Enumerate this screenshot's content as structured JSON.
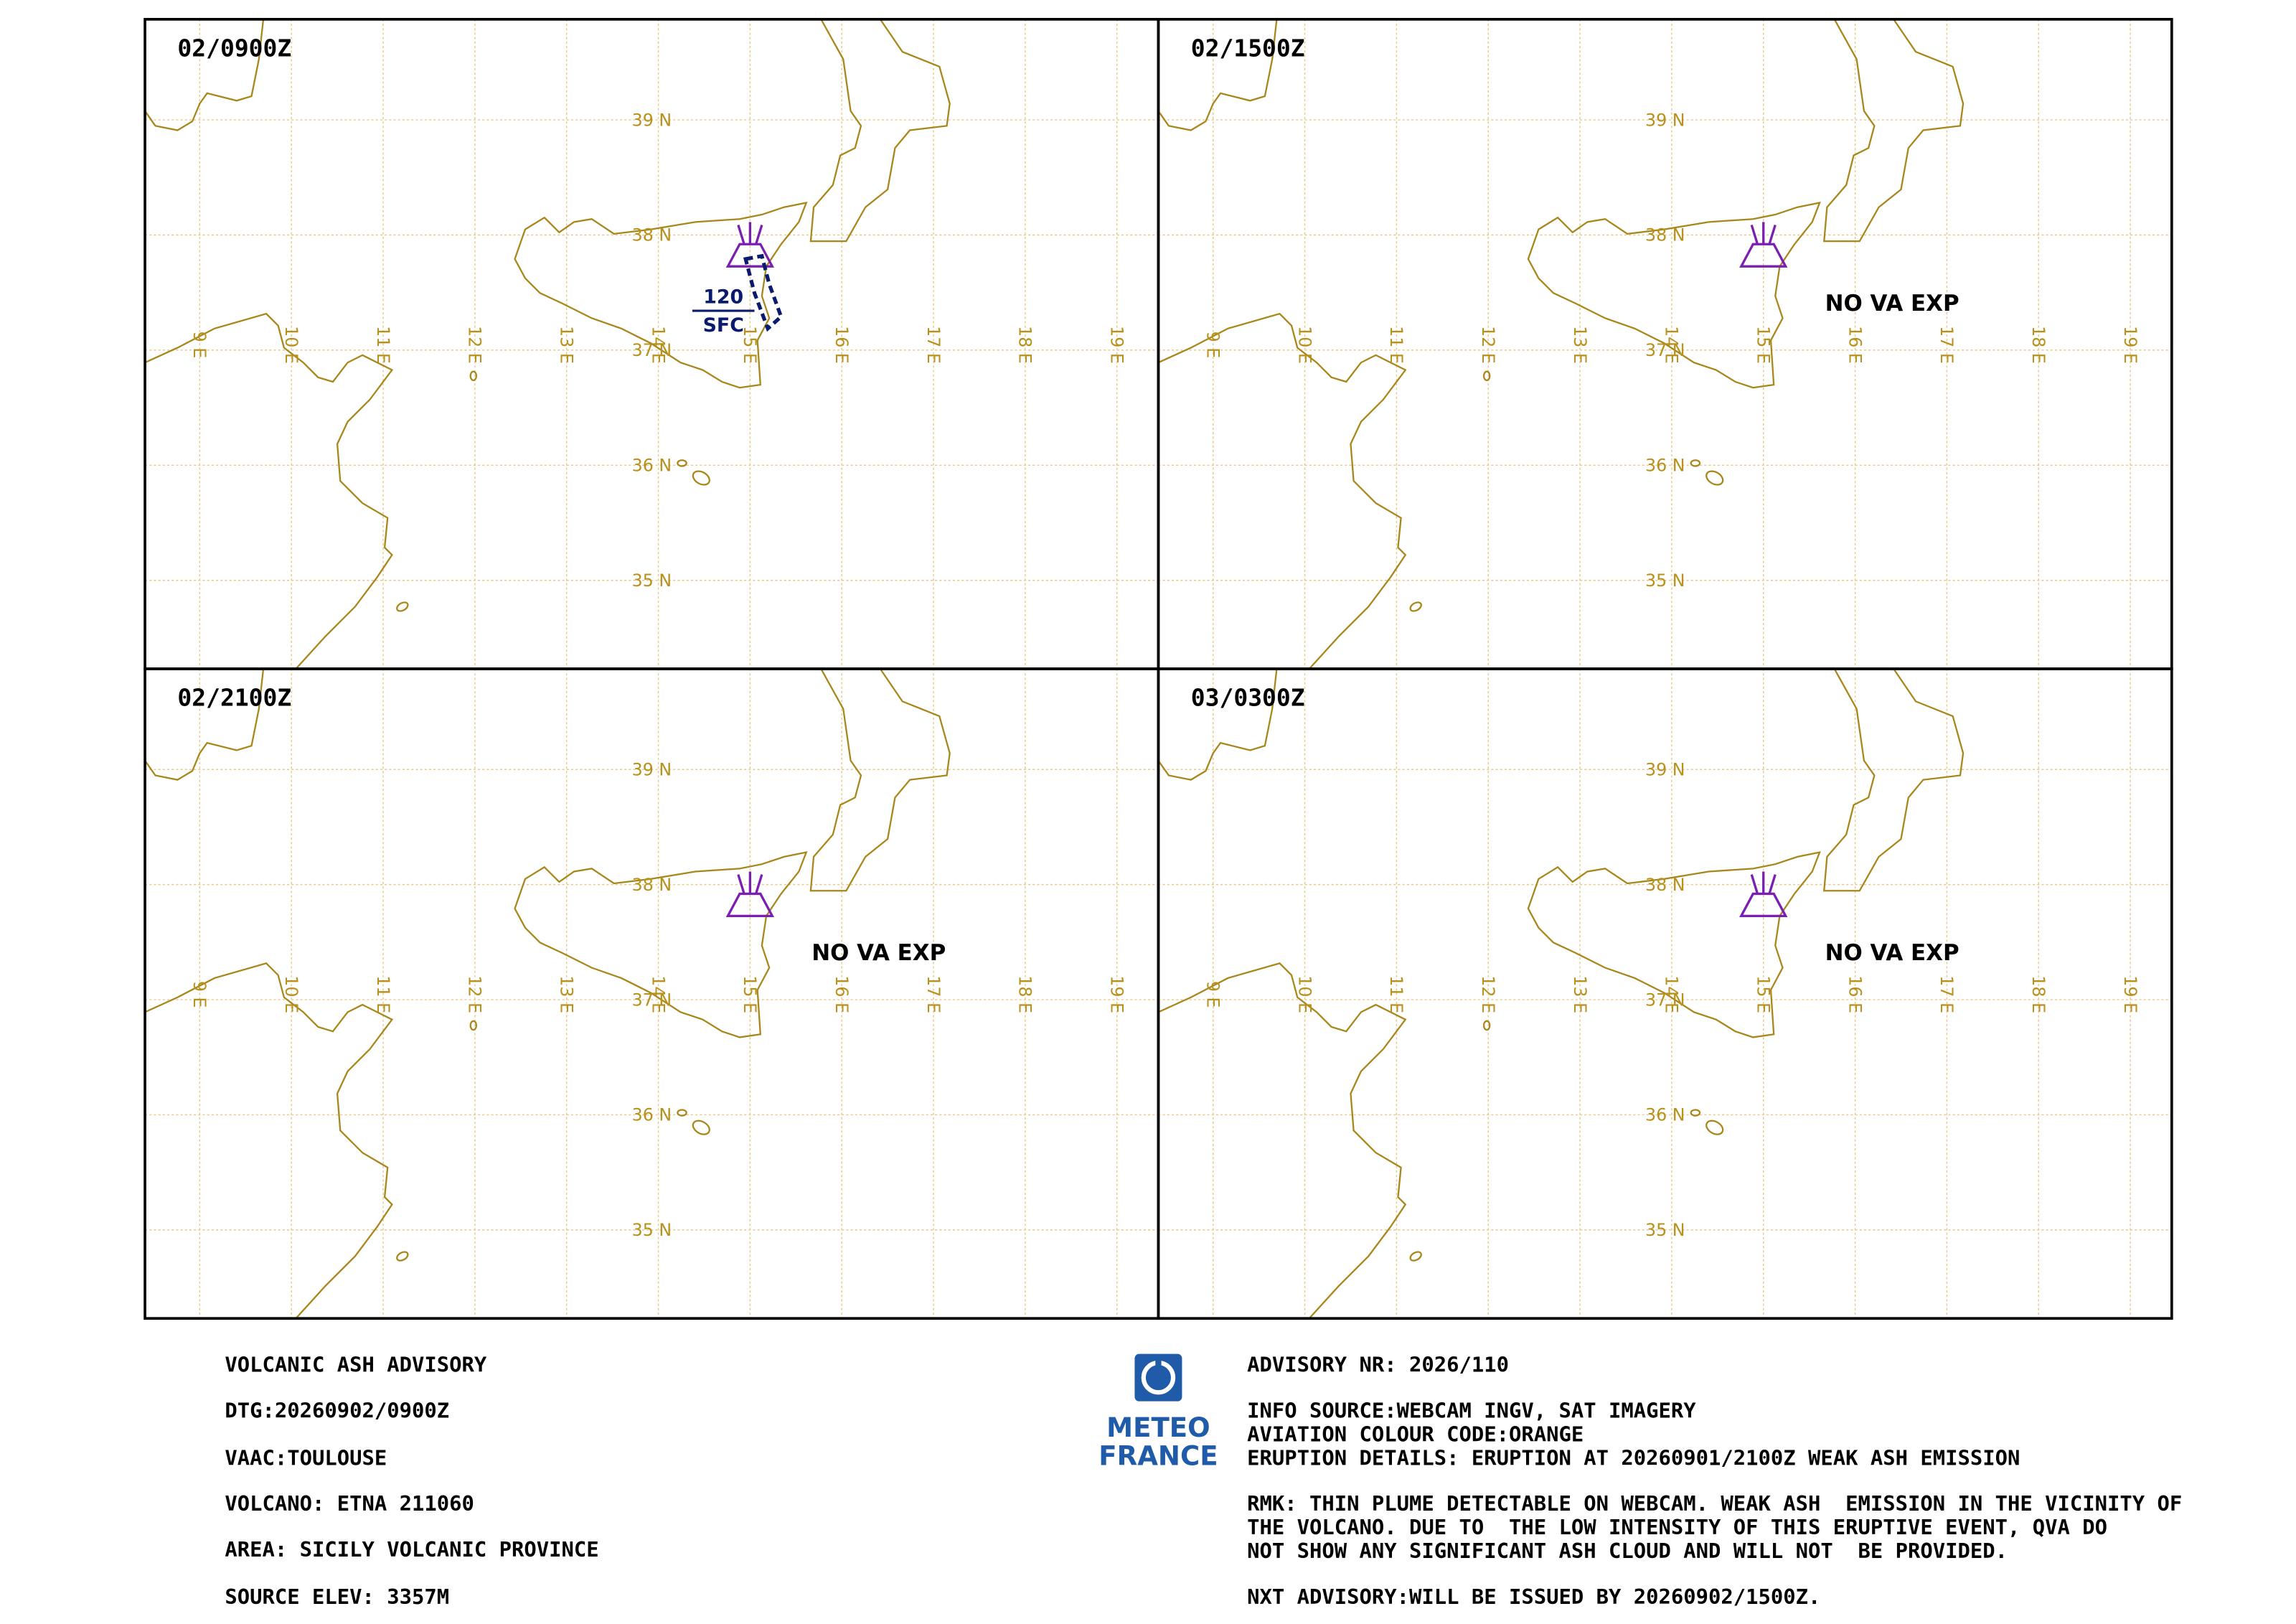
{
  "panels": [
    {
      "time": "02/0900Z",
      "cloud": {
        "top": "120",
        "base": "SFC"
      }
    },
    {
      "time": "02/1500Z",
      "note": "NO VA EXP"
    },
    {
      "time": "02/2100Z",
      "note": "NO VA EXP"
    },
    {
      "time": "03/0300Z",
      "note": "NO VA EXP"
    }
  ],
  "lat_labels": [
    "39 N",
    "38 N",
    "37 N",
    "36 N",
    "35 N"
  ],
  "lon_labels": [
    "9 E",
    "10 E",
    "11 E",
    "12 E",
    "13 E",
    "14 E",
    "15 E",
    "16 E",
    "17 E",
    "18 E",
    "19 E"
  ],
  "logo": [
    "METEO",
    "FRANCE"
  ],
  "advisory": {
    "left": [
      "VOLCANIC ASH ADVISORY",
      "DTG:20260902/0900Z",
      "VAAC:TOULOUSE",
      "VOLCANO: ETNA 211060",
      "AREA: SICILY VOLCANIC PROVINCE",
      "SOURCE ELEV: 3357M"
    ],
    "right": [
      "ADVISORY NR: 2026/110",
      "INFO SOURCE:WEBCAM INGV, SAT IMAGERY",
      "AVIATION COLOUR CODE:ORANGE",
      "ERUPTION DETAILS: ERUPTION AT 20260901/2100Z WEAK ASH EMISSION",
      "RMK: THIN PLUME DETECTABLE ON WEBCAM. WEAK ASH  EMISSION IN THE VICINITY OF",
      "THE VOLCANO. DUE TO  THE LOW INTENSITY OF THIS ERUPTIVE EVENT, QVA DO",
      "NOT SHOW ANY SIGNIFICANT ASH CLOUD AND WILL NOT  BE PROVIDED.",
      "NXT ADVISORY:WILL BE ISSUED BY 20260902/1500Z."
    ]
  }
}
